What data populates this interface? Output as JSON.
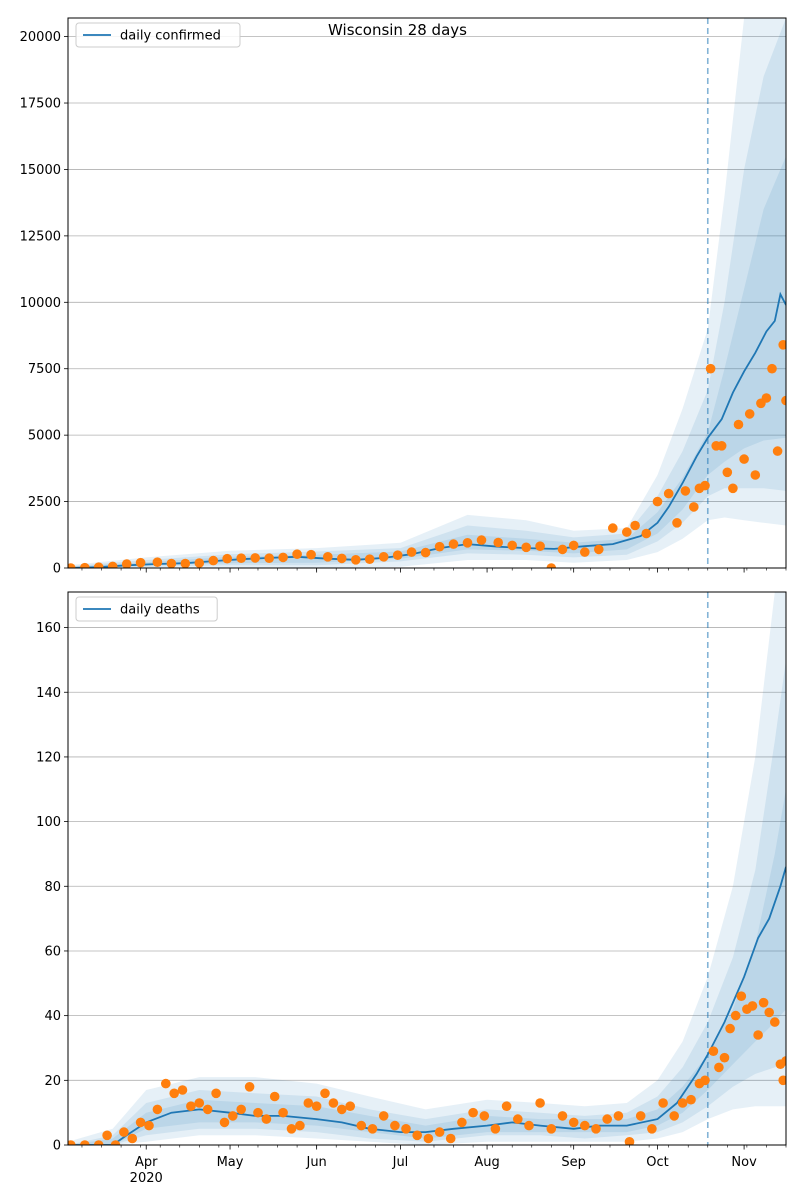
{
  "title": "Wisconsin 28 days",
  "colors": {
    "line": "#1f77b4",
    "points": "#ff7f0e",
    "band": "#1f77b4",
    "grid": "#b0b0b0",
    "divider": "#1f77b4"
  },
  "chart_data": [
    {
      "type": "line",
      "id": "confirmed",
      "title": "",
      "xlabel": "",
      "ylabel": "",
      "legend": {
        "placement": "top-left",
        "entries": [
          "daily confirmed"
        ]
      },
      "grid": "y",
      "xlim": [
        "2020-03-04",
        "2020-11-16"
      ],
      "ylim": [
        0,
        20700
      ],
      "y_ticks": [
        0,
        2500,
        5000,
        7500,
        10000,
        12500,
        15000,
        17500,
        20000
      ],
      "y_tick_labels": [
        "0",
        "2500",
        "5000",
        "7500",
        "10000",
        "12500",
        "15000",
        "17500",
        "20000"
      ],
      "x_tick_labels": [],
      "forecast_start": "2020-10-19",
      "series": [
        {
          "name": "daily confirmed",
          "kind": "line",
          "x": [
            "2020-03-04",
            "2020-03-15",
            "2020-03-25",
            "2020-04-05",
            "2020-04-15",
            "2020-04-25",
            "2020-05-05",
            "2020-05-15",
            "2020-05-25",
            "2020-06-05",
            "2020-06-15",
            "2020-06-25",
            "2020-07-05",
            "2020-07-15",
            "2020-07-25",
            "2020-08-05",
            "2020-08-15",
            "2020-08-25",
            "2020-09-05",
            "2020-09-15",
            "2020-09-25",
            "2020-10-01",
            "2020-10-05",
            "2020-10-10",
            "2020-10-15",
            "2020-10-19",
            "2020-10-24",
            "2020-10-28",
            "2020-11-01",
            "2020-11-05",
            "2020-11-09",
            "2020-11-12",
            "2020-11-14",
            "2020-11-16"
          ],
          "y": [
            0,
            30,
            100,
            150,
            180,
            260,
            330,
            380,
            420,
            350,
            310,
            380,
            520,
            750,
            900,
            800,
            750,
            720,
            820,
            900,
            1200,
            1700,
            2300,
            3200,
            4200,
            4900,
            5600,
            6600,
            7400,
            8100,
            8900,
            9300,
            10300,
            9900
          ]
        },
        {
          "name": "observed",
          "kind": "scatter",
          "x": [
            "2020-03-05",
            "2020-03-10",
            "2020-03-15",
            "2020-03-20",
            "2020-03-25",
            "2020-03-30",
            "2020-04-05",
            "2020-04-10",
            "2020-04-15",
            "2020-04-20",
            "2020-04-25",
            "2020-04-30",
            "2020-05-05",
            "2020-05-10",
            "2020-05-15",
            "2020-05-20",
            "2020-05-25",
            "2020-05-30",
            "2020-06-05",
            "2020-06-10",
            "2020-06-15",
            "2020-06-20",
            "2020-06-25",
            "2020-06-30",
            "2020-07-05",
            "2020-07-10",
            "2020-07-15",
            "2020-07-20",
            "2020-07-25",
            "2020-07-30",
            "2020-08-05",
            "2020-08-10",
            "2020-08-15",
            "2020-08-20",
            "2020-08-24",
            "2020-08-28",
            "2020-09-01",
            "2020-09-05",
            "2020-09-10",
            "2020-09-15",
            "2020-09-20",
            "2020-09-23",
            "2020-09-27",
            "2020-10-01",
            "2020-10-05",
            "2020-10-08",
            "2020-10-11",
            "2020-10-14",
            "2020-10-16",
            "2020-10-18",
            "2020-10-20",
            "2020-10-22",
            "2020-10-24",
            "2020-10-26",
            "2020-10-28",
            "2020-10-30",
            "2020-11-01",
            "2020-11-03",
            "2020-11-05",
            "2020-11-07",
            "2020-11-09",
            "2020-11-11",
            "2020-11-13",
            "2020-11-15",
            "2020-11-16"
          ],
          "y": [
            0,
            10,
            30,
            60,
            150,
            200,
            220,
            170,
            170,
            190,
            280,
            350,
            370,
            380,
            370,
            400,
            520,
            500,
            420,
            360,
            310,
            330,
            420,
            480,
            600,
            580,
            800,
            900,
            950,
            1050,
            960,
            850,
            780,
            820,
            0,
            700,
            850,
            600,
            700,
            1500,
            1350,
            1600,
            1300,
            2500,
            2800,
            1700,
            2900,
            2300,
            3000,
            3100,
            7500,
            4600,
            4600,
            3600,
            3000,
            5400,
            4100,
            5800,
            3500,
            6200,
            6400,
            7500,
            4400,
            8400,
            6300
          ]
        }
      ],
      "bands": [
        {
          "name": "band-outer",
          "x": [
            "2020-03-04",
            "2020-04-01",
            "2020-05-01",
            "2020-06-01",
            "2020-07-01",
            "2020-07-25",
            "2020-08-15",
            "2020-09-01",
            "2020-09-20",
            "2020-10-01",
            "2020-10-10",
            "2020-10-19",
            "2020-10-25",
            "2020-11-01",
            "2020-11-08",
            "2020-11-16"
          ],
          "low": [
            0,
            0,
            0,
            0,
            50,
            300,
            300,
            200,
            300,
            600,
            1100,
            1800,
            1900,
            1800,
            1700,
            1600
          ],
          "high": [
            100,
            400,
            650,
            750,
            950,
            2000,
            1800,
            1400,
            1500,
            3500,
            6000,
            9000,
            14000,
            20700,
            20700,
            20700
          ]
        },
        {
          "name": "band-mid",
          "x": [
            "2020-03-04",
            "2020-04-01",
            "2020-05-01",
            "2020-06-01",
            "2020-07-01",
            "2020-07-25",
            "2020-08-15",
            "2020-09-01",
            "2020-09-20",
            "2020-10-01",
            "2020-10-10",
            "2020-10-19",
            "2020-10-25",
            "2020-11-01",
            "2020-11-08",
            "2020-11-16"
          ],
          "low": [
            0,
            50,
            100,
            100,
            250,
            550,
            500,
            400,
            500,
            1000,
            1700,
            2700,
            3000,
            3000,
            3000,
            2900
          ],
          "high": [
            60,
            300,
            520,
            620,
            750,
            1600,
            1400,
            1150,
            1300,
            2700,
            4400,
            6700,
            10000,
            15000,
            18500,
            20700
          ]
        },
        {
          "name": "band-inner",
          "x": [
            "2020-03-04",
            "2020-04-01",
            "2020-05-01",
            "2020-06-01",
            "2020-07-01",
            "2020-07-25",
            "2020-08-15",
            "2020-09-01",
            "2020-09-20",
            "2020-10-01",
            "2020-10-10",
            "2020-10-19",
            "2020-10-25",
            "2020-11-01",
            "2020-11-08",
            "2020-11-16"
          ],
          "low": [
            0,
            100,
            180,
            200,
            350,
            700,
            650,
            550,
            700,
            1300,
            2200,
            3500,
            4000,
            4500,
            4800,
            4900
          ],
          "high": [
            40,
            220,
            420,
            500,
            620,
            1250,
            1100,
            950,
            1100,
            2100,
            3400,
            5100,
            7500,
            10500,
            13500,
            15500
          ]
        }
      ]
    },
    {
      "type": "line",
      "id": "deaths",
      "title": "",
      "xlabel": "",
      "ylabel": "",
      "legend": {
        "placement": "top-left",
        "entries": [
          "daily deaths"
        ]
      },
      "grid": "y",
      "xlim": [
        "2020-03-04",
        "2020-11-16"
      ],
      "ylim": [
        0,
        171
      ],
      "y_ticks": [
        0,
        20,
        40,
        60,
        80,
        100,
        120,
        140,
        160
      ],
      "y_tick_labels": [
        "0",
        "20",
        "40",
        "60",
        "80",
        "100",
        "120",
        "140",
        "160"
      ],
      "x_tick_labels": [
        {
          "date": "2020-04-01",
          "label": "Apr",
          "sublabel": "2020"
        },
        {
          "date": "2020-05-01",
          "label": "May",
          "sublabel": ""
        },
        {
          "date": "2020-06-01",
          "label": "Jun",
          "sublabel": ""
        },
        {
          "date": "2020-07-01",
          "label": "Jul",
          "sublabel": ""
        },
        {
          "date": "2020-08-01",
          "label": "Aug",
          "sublabel": ""
        },
        {
          "date": "2020-09-01",
          "label": "Sep",
          "sublabel": ""
        },
        {
          "date": "2020-10-01",
          "label": "Oct",
          "sublabel": ""
        },
        {
          "date": "2020-11-01",
          "label": "Nov",
          "sublabel": ""
        }
      ],
      "forecast_start": "2020-10-19",
      "series": [
        {
          "name": "daily deaths",
          "kind": "line",
          "x": [
            "2020-03-04",
            "2020-03-20",
            "2020-03-25",
            "2020-04-01",
            "2020-04-10",
            "2020-04-20",
            "2020-05-01",
            "2020-05-10",
            "2020-05-20",
            "2020-06-01",
            "2020-06-10",
            "2020-06-20",
            "2020-07-01",
            "2020-07-10",
            "2020-07-20",
            "2020-08-01",
            "2020-08-10",
            "2020-08-20",
            "2020-09-01",
            "2020-09-10",
            "2020-09-20",
            "2020-10-01",
            "2020-10-08",
            "2020-10-15",
            "2020-10-19",
            "2020-10-25",
            "2020-11-01",
            "2020-11-06",
            "2020-11-10",
            "2020-11-14",
            "2020-11-16"
          ],
          "y": [
            0,
            0,
            3,
            7,
            10,
            11,
            10,
            9,
            9,
            8,
            7,
            5,
            4,
            4,
            5,
            6,
            7,
            6,
            5,
            6,
            6,
            8,
            13,
            22,
            28,
            38,
            52,
            64,
            70,
            80,
            86
          ]
        },
        {
          "name": "observed",
          "kind": "scatter",
          "x": [
            "2020-03-05",
            "2020-03-10",
            "2020-03-15",
            "2020-03-18",
            "2020-03-21",
            "2020-03-24",
            "2020-03-27",
            "2020-03-30",
            "2020-04-02",
            "2020-04-05",
            "2020-04-08",
            "2020-04-11",
            "2020-04-14",
            "2020-04-17",
            "2020-04-20",
            "2020-04-23",
            "2020-04-26",
            "2020-04-29",
            "2020-05-02",
            "2020-05-05",
            "2020-05-08",
            "2020-05-11",
            "2020-05-14",
            "2020-05-17",
            "2020-05-20",
            "2020-05-23",
            "2020-05-26",
            "2020-05-29",
            "2020-06-01",
            "2020-06-04",
            "2020-06-07",
            "2020-06-10",
            "2020-06-13",
            "2020-06-17",
            "2020-06-21",
            "2020-06-25",
            "2020-06-29",
            "2020-07-03",
            "2020-07-07",
            "2020-07-11",
            "2020-07-15",
            "2020-07-19",
            "2020-07-23",
            "2020-07-27",
            "2020-07-31",
            "2020-08-04",
            "2020-08-08",
            "2020-08-12",
            "2020-08-16",
            "2020-08-20",
            "2020-08-24",
            "2020-08-28",
            "2020-09-01",
            "2020-09-05",
            "2020-09-09",
            "2020-09-13",
            "2020-09-17",
            "2020-09-21",
            "2020-09-25",
            "2020-09-29",
            "2020-10-03",
            "2020-10-07",
            "2020-10-10",
            "2020-10-13",
            "2020-10-16",
            "2020-10-18",
            "2020-10-21",
            "2020-10-23",
            "2020-10-25",
            "2020-10-27",
            "2020-10-29",
            "2020-10-31",
            "2020-11-02",
            "2020-11-04",
            "2020-11-06",
            "2020-11-08",
            "2020-11-10",
            "2020-11-12",
            "2020-11-14",
            "2020-11-15",
            "2020-11-16"
          ],
          "y": [
            0,
            0,
            0,
            3,
            0,
            4,
            2,
            7,
            6,
            11,
            19,
            16,
            17,
            12,
            13,
            11,
            16,
            7,
            9,
            11,
            18,
            10,
            8,
            15,
            10,
            5,
            6,
            13,
            12,
            16,
            13,
            11,
            12,
            6,
            5,
            9,
            6,
            5,
            3,
            2,
            4,
            2,
            7,
            10,
            9,
            5,
            12,
            8,
            6,
            13,
            5,
            9,
            7,
            6,
            5,
            8,
            9,
            1,
            9,
            5,
            13,
            9,
            13,
            14,
            19,
            20,
            29,
            24,
            27,
            36,
            40,
            46,
            42,
            43,
            34,
            44,
            41,
            38,
            25,
            20,
            26
          ]
        }
      ],
      "bands": [
        {
          "name": "band-outer",
          "x": [
            "2020-03-04",
            "2020-03-20",
            "2020-04-01",
            "2020-04-20",
            "2020-05-10",
            "2020-06-01",
            "2020-06-20",
            "2020-07-10",
            "2020-08-01",
            "2020-08-20",
            "2020-09-05",
            "2020-09-20",
            "2020-10-01",
            "2020-10-10",
            "2020-10-19",
            "2020-10-28",
            "2020-11-05",
            "2020-11-12",
            "2020-11-16"
          ],
          "low": [
            0,
            0,
            1,
            3,
            3,
            2,
            1,
            0,
            1,
            1,
            1,
            1,
            2,
            4,
            8,
            11,
            12,
            12,
            12
          ],
          "high": [
            1,
            5,
            17,
            21,
            21,
            19,
            15,
            11,
            14,
            13,
            12,
            13,
            20,
            32,
            52,
            80,
            120,
            171,
            171
          ]
        },
        {
          "name": "band-mid",
          "x": [
            "2020-03-04",
            "2020-03-20",
            "2020-04-01",
            "2020-04-20",
            "2020-05-10",
            "2020-06-01",
            "2020-06-20",
            "2020-07-10",
            "2020-08-01",
            "2020-08-20",
            "2020-09-05",
            "2020-09-20",
            "2020-10-01",
            "2020-10-10",
            "2020-10-19",
            "2020-10-28",
            "2020-11-05",
            "2020-11-12",
            "2020-11-16"
          ],
          "low": [
            0,
            0,
            3,
            5,
            5,
            4,
            2,
            1,
            3,
            3,
            2,
            3,
            4,
            7,
            12,
            18,
            22,
            24,
            26
          ],
          "high": [
            0,
            3,
            13,
            17,
            16,
            15,
            11,
            8,
            11,
            10,
            9,
            10,
            15,
            24,
            38,
            58,
            85,
            125,
            150
          ]
        },
        {
          "name": "band-inner",
          "x": [
            "2020-03-04",
            "2020-03-20",
            "2020-04-01",
            "2020-04-20",
            "2020-05-10",
            "2020-06-01",
            "2020-06-20",
            "2020-07-10",
            "2020-08-01",
            "2020-08-20",
            "2020-09-05",
            "2020-09-20",
            "2020-10-01",
            "2020-10-10",
            "2020-10-19",
            "2020-10-28",
            "2020-11-05",
            "2020-11-12",
            "2020-11-16"
          ],
          "low": [
            0,
            0,
            5,
            7,
            7,
            6,
            4,
            2,
            4,
            4,
            4,
            4,
            6,
            10,
            17,
            25,
            32,
            38,
            42
          ],
          "high": [
            0,
            2,
            10,
            14,
            13,
            12,
            9,
            6,
            9,
            8,
            8,
            8,
            11,
            18,
            28,
            42,
            62,
            90,
            110
          ]
        }
      ]
    }
  ]
}
